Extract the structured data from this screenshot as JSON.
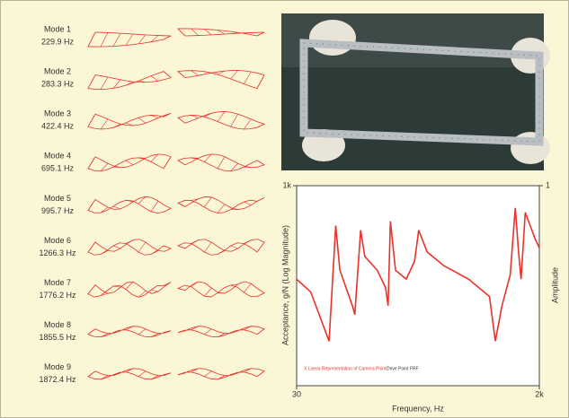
{
  "modes": [
    {
      "name": "Mode 1",
      "freq": "229.9 Hz"
    },
    {
      "name": "Mode 2",
      "freq": "283.3 Hz"
    },
    {
      "name": "Mode 3",
      "freq": "422.4 Hz"
    },
    {
      "name": "Mode 4",
      "freq": "695.1 Hz"
    },
    {
      "name": "Mode 5",
      "freq": "995.7 Hz"
    },
    {
      "name": "Mode 6",
      "freq": "1266.3 Hz"
    },
    {
      "name": "Mode 7",
      "freq": "1776.2 Hz"
    },
    {
      "name": "Mode 8",
      "freq": "1855.5 Hz"
    },
    {
      "name": "Mode 9",
      "freq": "1872.4 Hz"
    }
  ],
  "chart_data": {
    "type": "line",
    "xlabel": "Frequency, Hz",
    "ylabel": "Acceptance, g/N (Log Magnitude)",
    "y2label": "Amplitude",
    "annotations": [
      "X Linear Representation of Camera Point",
      "Drive Point FRF"
    ],
    "log_x": true,
    "log_y": true,
    "xlim": [
      30,
      2000
    ],
    "xticks": [
      30,
      {
        "value": 2000,
        "label": "2k"
      }
    ],
    "ylim": [
      0.01,
      1000
    ],
    "yticks": [
      {
        "value": 1000,
        "label": "1k"
      }
    ],
    "y2lim": [
      0,
      1
    ],
    "y2ticks": [
      1
    ],
    "x": [
      30,
      38.3,
      52.6,
      59,
      63.4,
      78.7,
      82.1,
      90.8,
      97.6,
      121,
      140,
      146,
      152,
      166,
      200,
      231,
      248,
      287,
      383,
      589,
      844,
      934,
      1048,
      1209,
      1319,
      1396,
      1458,
      1568,
      1862,
      2000
    ],
    "series": [
      {
        "color": "#e8332a",
        "values": [
          4.6,
          2.2,
          0.13,
          100,
          7.7,
          1,
          0.6,
          77,
          17,
          7.7,
          2.8,
          1,
          129,
          7.7,
          4.6,
          13,
          77,
          22,
          10,
          4.6,
          1.7,
          0.13,
          1,
          6,
          278,
          22,
          4.6,
          215,
          46,
          28
        ]
      }
    ]
  }
}
